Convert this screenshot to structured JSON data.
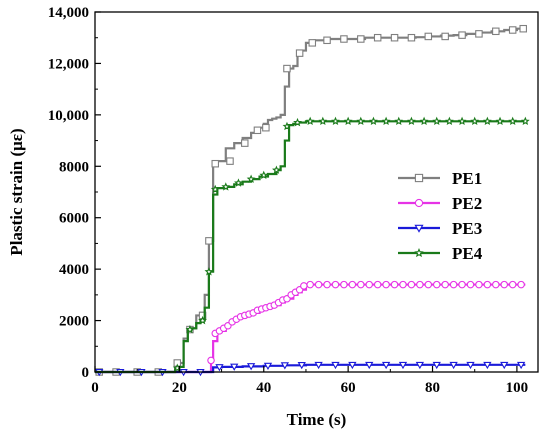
{
  "chart_data": {
    "type": "line",
    "title": "",
    "xlabel": "Time (s)",
    "ylabel": "Plastic strain (με)",
    "xlim": [
      0,
      105
    ],
    "ylim": [
      0,
      14000
    ],
    "x_ticks": [
      0,
      20,
      40,
      60,
      80,
      100
    ],
    "y_ticks": [
      0,
      2000,
      4000,
      6000,
      8000,
      10000,
      12000,
      14000
    ],
    "x_tick_labels": [
      "0",
      "20",
      "40",
      "60",
      "80",
      "100"
    ],
    "y_tick_labels": [
      "0",
      "2000",
      "4000",
      "6000",
      "8000",
      "10,000",
      "12,000",
      "14,000"
    ],
    "legend_position": "right-middle",
    "series": [
      {
        "name": "PE1",
        "color": "#7f7f7f",
        "marker": "square",
        "x": [
          0,
          3,
          8,
          13,
          18,
          19,
          20,
          21,
          22,
          23,
          24,
          25,
          26,
          27,
          28,
          29,
          31,
          33,
          35,
          37,
          38,
          39,
          40,
          41,
          42,
          43,
          44,
          45,
          46,
          47,
          48,
          49,
          50,
          52,
          55,
          58,
          61,
          64,
          67,
          70,
          73,
          76,
          79,
          82,
          85,
          88,
          91,
          94,
          97,
          100,
          102
        ],
        "y": [
          0,
          0,
          0,
          0,
          0,
          150,
          350,
          1300,
          1650,
          1700,
          2200,
          2300,
          3000,
          5100,
          8100,
          8200,
          8700,
          8900,
          9100,
          9300,
          9400,
          9500,
          9650,
          9800,
          9850,
          9900,
          10000,
          11100,
          11800,
          11900,
          12400,
          12500,
          12800,
          12900,
          12950,
          12950,
          12950,
          13000,
          13000,
          13000,
          13000,
          13020,
          13050,
          13080,
          13100,
          13150,
          13200,
          13250,
          13300,
          13350,
          13350
        ],
        "markers": [
          [
            1,
            0
          ],
          [
            5,
            0
          ],
          [
            10,
            0
          ],
          [
            15,
            0
          ],
          [
            19.5,
            350
          ],
          [
            22.5,
            1650
          ],
          [
            25.5,
            2200
          ],
          [
            27,
            5100
          ],
          [
            28.5,
            8100
          ],
          [
            32,
            8200
          ],
          [
            35.5,
            8900
          ],
          [
            38.5,
            9400
          ],
          [
            40.5,
            9500
          ],
          [
            45.5,
            11800
          ],
          [
            48.5,
            12400
          ],
          [
            51.5,
            12800
          ],
          [
            55,
            12900
          ],
          [
            59,
            12950
          ],
          [
            63,
            12950
          ],
          [
            67,
            13000
          ],
          [
            71,
            13000
          ],
          [
            75,
            13000
          ],
          [
            79,
            13050
          ],
          [
            83,
            13050
          ],
          [
            87,
            13100
          ],
          [
            91,
            13150
          ],
          [
            95,
            13250
          ],
          [
            99,
            13300
          ],
          [
            101.5,
            13350
          ]
        ]
      },
      {
        "name": "PE2",
        "color": "#e633e6",
        "marker": "circle",
        "x": [
          0,
          5,
          10,
          15,
          20,
          25,
          27,
          27.5,
          28,
          29,
          30,
          31,
          32,
          33,
          34,
          35,
          36,
          37,
          38,
          39,
          40,
          41,
          42,
          43,
          44,
          45,
          46,
          47,
          48,
          49,
          50,
          51,
          55,
          60,
          65,
          70,
          75,
          80,
          85,
          90,
          95,
          100,
          102
        ],
        "y": [
          0,
          0,
          0,
          0,
          0,
          0,
          0,
          450,
          1200,
          1550,
          1600,
          1750,
          1900,
          2000,
          2100,
          2150,
          2200,
          2250,
          2300,
          2400,
          2450,
          2500,
          2550,
          2600,
          2700,
          2800,
          2850,
          3000,
          3100,
          3200,
          3350,
          3400,
          3400,
          3400,
          3400,
          3400,
          3400,
          3400,
          3400,
          3400,
          3400,
          3400,
          3400
        ],
        "markers": [
          [
            27.5,
            450
          ],
          [
            28.5,
            1500
          ],
          [
            29.5,
            1600
          ],
          [
            30.5,
            1700
          ],
          [
            31.5,
            1800
          ],
          [
            32.5,
            1950
          ],
          [
            33.5,
            2050
          ],
          [
            34.5,
            2150
          ],
          [
            35.5,
            2200
          ],
          [
            36.5,
            2250
          ],
          [
            37.5,
            2300
          ],
          [
            38.5,
            2400
          ],
          [
            39.5,
            2450
          ],
          [
            40.5,
            2500
          ],
          [
            41.5,
            2550
          ],
          [
            42.5,
            2600
          ],
          [
            43.5,
            2700
          ],
          [
            44.5,
            2800
          ],
          [
            45.5,
            2850
          ],
          [
            46.5,
            3000
          ],
          [
            47.5,
            3100
          ],
          [
            48.5,
            3200
          ],
          [
            49.5,
            3350
          ],
          [
            51,
            3400
          ],
          [
            53,
            3400
          ],
          [
            55,
            3400
          ],
          [
            57,
            3400
          ],
          [
            59,
            3400
          ],
          [
            61,
            3400
          ],
          [
            63,
            3400
          ],
          [
            65,
            3400
          ],
          [
            67,
            3400
          ],
          [
            69,
            3400
          ],
          [
            71,
            3400
          ],
          [
            73,
            3400
          ],
          [
            75,
            3400
          ],
          [
            77,
            3400
          ],
          [
            79,
            3400
          ],
          [
            81,
            3400
          ],
          [
            83,
            3400
          ],
          [
            85,
            3400
          ],
          [
            87,
            3400
          ],
          [
            89,
            3400
          ],
          [
            91,
            3400
          ],
          [
            93,
            3400
          ],
          [
            95,
            3400
          ],
          [
            97,
            3400
          ],
          [
            99,
            3400
          ],
          [
            101,
            3400
          ]
        ]
      },
      {
        "name": "PE3",
        "color": "#1a1ad9",
        "marker": "triangle-down",
        "x": [
          0,
          5,
          10,
          15,
          20,
          25,
          27,
          28,
          30,
          35,
          40,
          45,
          50,
          55,
          60,
          65,
          70,
          75,
          80,
          85,
          90,
          95,
          100,
          102
        ],
        "y": [
          0,
          0,
          0,
          0,
          0,
          0,
          0,
          180,
          200,
          220,
          240,
          260,
          280,
          280,
          280,
          280,
          280,
          280,
          280,
          280,
          280,
          280,
          280,
          280
        ],
        "markers": [
          [
            1,
            0
          ],
          [
            6,
            0
          ],
          [
            11,
            0
          ],
          [
            16,
            0
          ],
          [
            21,
            0
          ],
          [
            25,
            0
          ],
          [
            29.5,
            190
          ],
          [
            33,
            210
          ],
          [
            37,
            230
          ],
          [
            41,
            245
          ],
          [
            45,
            265
          ],
          [
            49,
            275
          ],
          [
            53,
            280
          ],
          [
            57,
            280
          ],
          [
            61,
            280
          ],
          [
            65,
            280
          ],
          [
            69,
            280
          ],
          [
            73,
            280
          ],
          [
            77,
            280
          ],
          [
            81,
            280
          ],
          [
            85,
            280
          ],
          [
            89,
            280
          ],
          [
            93,
            280
          ],
          [
            97,
            280
          ],
          [
            101,
            280
          ]
        ]
      },
      {
        "name": "PE4",
        "color": "#1a7a1a",
        "marker": "star",
        "x": [
          0,
          5,
          10,
          15,
          18,
          19,
          20,
          21,
          22,
          23,
          24,
          25,
          26,
          27,
          28,
          29,
          31,
          33,
          35,
          37,
          39,
          41,
          43,
          44,
          45,
          46,
          47,
          48,
          50,
          52,
          55,
          60,
          65,
          70,
          75,
          80,
          85,
          90,
          95,
          100,
          102
        ],
        "y": [
          0,
          0,
          0,
          0,
          0,
          100,
          200,
          1200,
          1650,
          1700,
          1900,
          2000,
          2500,
          3900,
          6900,
          7150,
          7200,
          7300,
          7400,
          7500,
          7600,
          7700,
          7850,
          8000,
          9000,
          9600,
          9650,
          9700,
          9750,
          9750,
          9750,
          9750,
          9750,
          9750,
          9750,
          9750,
          9750,
          9750,
          9750,
          9750,
          9750
        ],
        "markers": [
          [
            19.5,
            150
          ],
          [
            22.5,
            1650
          ],
          [
            25.5,
            2000
          ],
          [
            27,
            3900
          ],
          [
            28.5,
            7100
          ],
          [
            31,
            7200
          ],
          [
            34,
            7350
          ],
          [
            37,
            7500
          ],
          [
            40,
            7650
          ],
          [
            43,
            7850
          ],
          [
            45.5,
            9550
          ],
          [
            48,
            9700
          ],
          [
            51,
            9750
          ],
          [
            54,
            9750
          ],
          [
            57,
            9750
          ],
          [
            60,
            9750
          ],
          [
            63,
            9750
          ],
          [
            66,
            9750
          ],
          [
            69,
            9750
          ],
          [
            72,
            9750
          ],
          [
            75,
            9750
          ],
          [
            78,
            9750
          ],
          [
            81,
            9750
          ],
          [
            84,
            9750
          ],
          [
            87,
            9750
          ],
          [
            90,
            9750
          ],
          [
            93,
            9750
          ],
          [
            96,
            9750
          ],
          [
            99,
            9750
          ],
          [
            102,
            9750
          ]
        ]
      }
    ]
  }
}
